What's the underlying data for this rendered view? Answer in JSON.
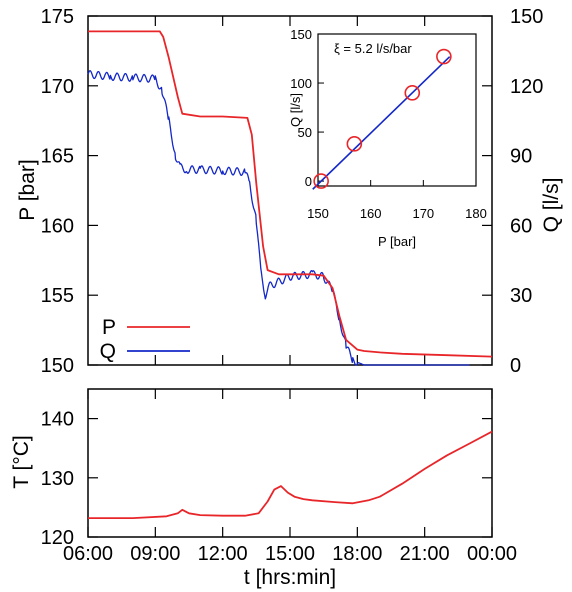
{
  "chart_data": [
    {
      "type": "line",
      "xlabel": "",
      "ylabel": "P [bar]",
      "y2label": "Q [l/s]",
      "xlim": [
        6,
        24
      ],
      "ylim": [
        150,
        175
      ],
      "y2lim": [
        0,
        150
      ],
      "yticks": [
        "150",
        "155",
        "160",
        "165",
        "170",
        "175"
      ],
      "y2ticks": [
        "0",
        "30",
        "60",
        "90",
        "120",
        "150"
      ],
      "grid": false,
      "legend": {
        "position": "bottom-left",
        "entries": [
          "P",
          "Q"
        ]
      },
      "colors": {
        "P": "#e8262a",
        "Q": "#1428c8"
      },
      "series": [
        {
          "name": "P",
          "axis": "left",
          "x": [
            6.0,
            9.2,
            9.35,
            9.6,
            10.0,
            10.2,
            11.0,
            12.0,
            13.1,
            13.3,
            13.5,
            13.8,
            14.0,
            14.5,
            16.0,
            16.5,
            16.9,
            17.2,
            17.5,
            18.0,
            18.3,
            19.0,
            20.0,
            22.0,
            24.0
          ],
          "y": [
            173.9,
            173.9,
            173.5,
            172.0,
            169.2,
            168.0,
            167.8,
            167.8,
            167.7,
            166.5,
            163.0,
            158.5,
            156.8,
            156.5,
            156.5,
            156.4,
            155.5,
            153.5,
            151.8,
            151.1,
            151.0,
            150.9,
            150.8,
            150.7,
            150.6
          ]
        },
        {
          "name": "Q",
          "axis": "right",
          "x": [
            6.0,
            7.0,
            8.0,
            9.0,
            9.3,
            9.6,
            9.9,
            10.1,
            10.4,
            11.0,
            12.0,
            13.0,
            13.2,
            13.5,
            13.7,
            13.9,
            14.1,
            15.0,
            16.0,
            16.5,
            16.9,
            17.2,
            17.5,
            17.8,
            18.3,
            19.0,
            23.0
          ],
          "y": [
            125,
            124,
            123.5,
            123,
            118,
            105,
            90,
            85,
            84,
            84,
            83.5,
            83,
            78,
            62,
            40,
            30,
            34,
            38,
            39,
            38,
            32,
            20,
            8,
            2,
            0,
            0,
            0
          ]
        }
      ]
    },
    {
      "type": "scatter",
      "inset": true,
      "annotation": "ξ = 5.2 l/s/bar",
      "xlabel": "P [bar]",
      "ylabel": "Q [l/s]",
      "xlim": [
        150,
        180
      ],
      "ylim": [
        -5,
        150
      ],
      "xticks": [
        "150",
        "160",
        "170",
        "180"
      ],
      "yticks": [
        "0",
        "50",
        "100",
        "150"
      ],
      "points": {
        "x": [
          150.6,
          156.9,
          167.9,
          173.9
        ],
        "y": [
          0,
          38,
          90,
          127
        ]
      },
      "fit": {
        "slope": 5.2,
        "x": [
          149,
          175
        ]
      }
    },
    {
      "type": "line",
      "xlabel": "t [hrs:min]",
      "ylabel": "T [°C]",
      "xlim": [
        6,
        24
      ],
      "ylim": [
        120,
        145
      ],
      "xticks": [
        "06:00",
        "09:00",
        "12:00",
        "15:00",
        "18:00",
        "21:00",
        "00:00"
      ],
      "yticks": [
        "120",
        "130",
        "140"
      ],
      "grid": false,
      "series": [
        {
          "name": "T",
          "x": [
            6.0,
            8.0,
            9.5,
            10.0,
            10.2,
            10.5,
            11.0,
            12.0,
            13.0,
            13.6,
            14.0,
            14.3,
            14.6,
            14.9,
            15.2,
            15.6,
            16.0,
            17.0,
            17.8,
            18.5,
            19.0,
            20.0,
            21.0,
            22.0,
            23.0,
            24.0
          ],
          "y": [
            123.2,
            123.2,
            123.5,
            124.0,
            124.6,
            124.0,
            123.7,
            123.6,
            123.6,
            124.0,
            126.0,
            128.0,
            128.6,
            127.5,
            126.8,
            126.4,
            126.2,
            125.9,
            125.7,
            126.2,
            126.8,
            129.0,
            131.5,
            133.8,
            135.8,
            137.8
          ]
        }
      ]
    }
  ]
}
